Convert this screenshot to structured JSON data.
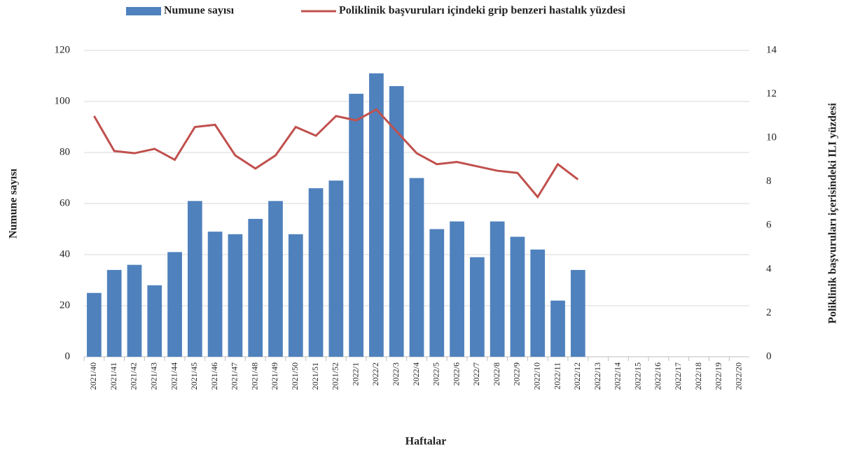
{
  "chart_data": {
    "type": "bar_line",
    "x_label": "Haftalar",
    "y_label": "Numune sayısı",
    "y2_label": "Poliklinik başvuruları içerisindeki ILI yüzdesi",
    "categories": [
      "2021/40",
      "2021/41",
      "2021/42",
      "2021/43",
      "2021/44",
      "2021/45",
      "2021/46",
      "2021/47",
      "2021/48",
      "2021/49",
      "2021/50",
      "2021/51",
      "2021/52",
      "2022/1",
      "2022/2",
      "2022/3",
      "2022/4",
      "2022/5",
      "2022/6",
      "2022/7",
      "2022/8",
      "2022/9",
      "2022/10",
      "2022/11",
      "2022/12",
      "2022/13",
      "2022/14",
      "2022/15",
      "2022/16",
      "2022/17",
      "2022/18",
      "2022/19",
      "2022/20"
    ],
    "series": [
      {
        "name": "Numune sayısı",
        "type": "bar",
        "color": "#4f81bd",
        "values": [
          25,
          34,
          36,
          28,
          41,
          61,
          49,
          48,
          54,
          61,
          48,
          66,
          69,
          103,
          111,
          106,
          70,
          50,
          53,
          39,
          53,
          47,
          42,
          22,
          34,
          null,
          null,
          null,
          null,
          null,
          null,
          null,
          null
        ]
      },
      {
        "name": "Poliklinik başvuruları içindeki grip benzeri hastalık yüzdesi",
        "type": "line",
        "axis": "y2",
        "color": "#c0504d",
        "values": [
          11.0,
          9.4,
          9.3,
          9.5,
          9.0,
          10.5,
          10.6,
          9.2,
          8.6,
          9.2,
          10.5,
          10.1,
          11.0,
          10.8,
          11.3,
          10.3,
          9.3,
          8.8,
          8.9,
          8.7,
          8.5,
          8.4,
          7.3,
          8.8,
          8.1,
          null,
          null,
          null,
          null,
          null,
          null,
          null,
          null
        ]
      }
    ],
    "ylim": [
      0,
      120
    ],
    "yticks": [
      0,
      20,
      40,
      60,
      80,
      100,
      120
    ],
    "y2lim": [
      0,
      14
    ],
    "y2ticks": [
      0,
      2,
      4,
      6,
      8,
      10,
      12,
      14
    ],
    "grid": true
  }
}
